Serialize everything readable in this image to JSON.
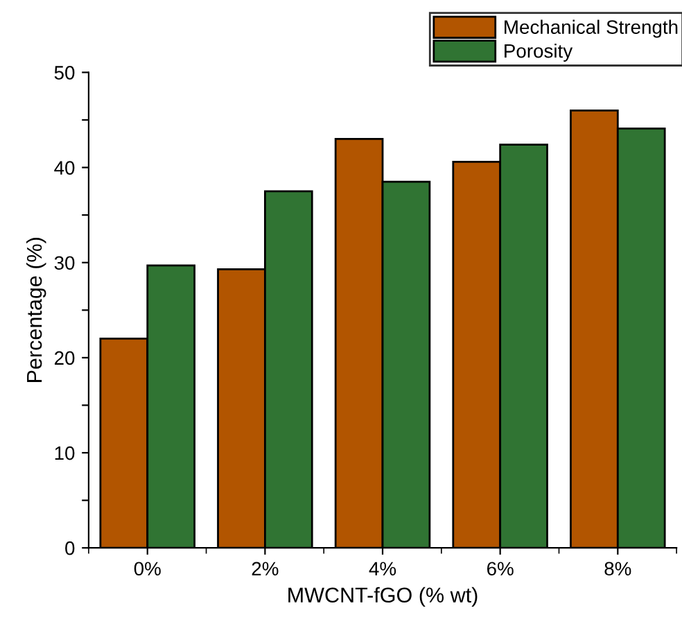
{
  "chart_data": {
    "type": "bar",
    "xlabel": "MWCNT-fGO (% wt)",
    "ylabel": "Percentage (%)",
    "categories": [
      "0%",
      "2%",
      "4%",
      "6%",
      "8%"
    ],
    "series": [
      {
        "name": "Mechanical Strength",
        "color": "#b25500",
        "values": [
          22.0,
          29.3,
          43.0,
          40.6,
          46.0
        ]
      },
      {
        "name": "Porosity",
        "color": "#307433",
        "values": [
          29.7,
          37.5,
          38.5,
          42.4,
          44.1
        ]
      }
    ],
    "ylim": [
      0,
      50
    ],
    "yticks": [
      0,
      {
        "value": 5,
        "label": null
      },
      10,
      {
        "value": 15,
        "label": null
      },
      20,
      {
        "value": 25,
        "label": null
      },
      30,
      {
        "value": 35,
        "label": null
      },
      40,
      {
        "value": 45,
        "label": null
      },
      50
    ],
    "grid": false,
    "legend": "top right"
  }
}
